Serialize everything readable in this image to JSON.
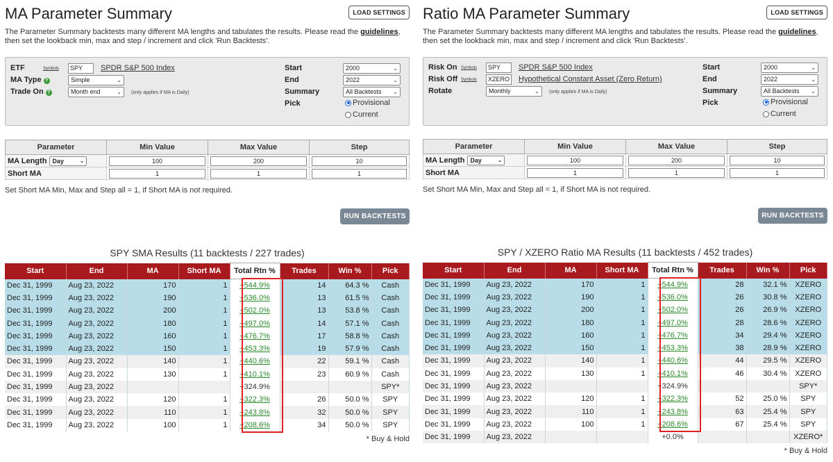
{
  "left": {
    "title": "MA Parameter Summary",
    "load_settings": "LOAD SETTINGS",
    "intro_before": "The Parameter Summary backtests many different MA lengths and tabulates the results.  Please read the ",
    "intro_link": "guidelines",
    "intro_after": ", then set the lookback min, max and step / increment and click 'Run Backtests'.",
    "settings": {
      "etf_label": "ETF",
      "symbols": "Symbols",
      "etf_value": "SPY",
      "etf_name": "SPDR S&P 500 Index",
      "ma_type_label": "MA Type",
      "ma_type_value": "Simple",
      "trade_on_label": "Trade On",
      "trade_on_value": "Month end",
      "daily_note": "(only applies if MA is Daily)",
      "start_label": "Start",
      "start_value": "2000",
      "end_label": "End",
      "end_value": "2022",
      "summary_label": "Summary",
      "summary_value": "All Backtests",
      "pick_label": "Pick",
      "provisional": "Provisional",
      "current": "Current",
      "pick_selected": "Provisional"
    },
    "params": {
      "headers": [
        "Parameter",
        "Min Value",
        "Max Value",
        "Step"
      ],
      "ma_length_label": "MA Length",
      "unit": "Day",
      "ma_min": "100",
      "ma_max": "200",
      "ma_step": "10",
      "short_label": "Short MA",
      "short_min": "1",
      "short_max": "1",
      "short_step": "1"
    },
    "param_note": "Set Short MA Min, Max and Step all = 1, if Short MA is not required.",
    "run": "RUN BACKTESTS",
    "results_title": "SPY SMA Results (11 backtests / 227 trades)",
    "headers": [
      "Start",
      "End",
      "MA",
      "Short MA",
      "Total Rtn %",
      "Trades",
      "Win %",
      "Pick"
    ],
    "rows": [
      [
        "Dec 31, 1999",
        "Aug 23, 2022",
        "170",
        "1",
        "+544.9%",
        "14",
        "64.3 %",
        "Cash"
      ],
      [
        "Dec 31, 1999",
        "Aug 23, 2022",
        "190",
        "1",
        "+536.0%",
        "13",
        "61.5 %",
        "Cash"
      ],
      [
        "Dec 31, 1999",
        "Aug 23, 2022",
        "200",
        "1",
        "+502.0%",
        "13",
        "53.8 %",
        "Cash"
      ],
      [
        "Dec 31, 1999",
        "Aug 23, 2022",
        "180",
        "1",
        "+497.0%",
        "14",
        "57.1 %",
        "Cash"
      ],
      [
        "Dec 31, 1999",
        "Aug 23, 2022",
        "160",
        "1",
        "+476.7%",
        "17",
        "58.8 %",
        "Cash"
      ],
      [
        "Dec 31, 1999",
        "Aug 23, 2022",
        "150",
        "1",
        "+453.3%",
        "19",
        "57.9 %",
        "Cash"
      ],
      [
        "Dec 31, 1999",
        "Aug 23, 2022",
        "140",
        "1",
        "+440.6%",
        "22",
        "59.1 %",
        "Cash"
      ],
      [
        "Dec 31, 1999",
        "Aug 23, 2022",
        "130",
        "1",
        "+410.1%",
        "23",
        "60.9 %",
        "Cash"
      ],
      [
        "Dec 31, 1999",
        "Aug 23, 2022",
        "",
        "",
        "+324.9%",
        "",
        "",
        "SPY*"
      ],
      [
        "Dec 31, 1999",
        "Aug 23, 2022",
        "120",
        "1",
        "+322.3%",
        "26",
        "50.0 %",
        "SPY"
      ],
      [
        "Dec 31, 1999",
        "Aug 23, 2022",
        "110",
        "1",
        "+243.8%",
        "32",
        "50.0 %",
        "SPY"
      ],
      [
        "Dec 31, 1999",
        "Aug 23, 2022",
        "100",
        "1",
        "+208.6%",
        "34",
        "50.0 %",
        "SPY"
      ]
    ],
    "footnote": "* Buy & Hold"
  },
  "right": {
    "title": "Ratio MA Parameter Summary",
    "load_settings": "LOAD SETTINGS",
    "intro_before": "The Parameter Summary backtests many different MA lengths and tabulates the results.  Please read the ",
    "intro_link": "guidelines",
    "intro_after": ", then set the lookback min, max and step / increment and click 'Run Backtests'.",
    "settings": {
      "risk_on_label": "Risk On",
      "symbols": "Symbols",
      "risk_on_value": "SPY",
      "risk_on_name": "SPDR S&P 500 Index",
      "risk_off_label": "Risk Off",
      "risk_off_value": "XZERO",
      "risk_off_name": "Hypothetical Constant Asset (Zero Return)",
      "rotate_label": "Rotate",
      "rotate_value": "Monthly",
      "daily_note": "(only applies if MA is Daily)",
      "start_label": "Start",
      "start_value": "2000",
      "end_label": "End",
      "end_value": "2022",
      "summary_label": "Summary",
      "summary_value": "All Backtests",
      "pick_label": "Pick",
      "provisional": "Provisional",
      "current": "Current",
      "pick_selected": "Provisional"
    },
    "params": {
      "headers": [
        "Parameter",
        "Min Value",
        "Max Value",
        "Step"
      ],
      "ma_length_label": "MA Length",
      "unit": "Day",
      "ma_min": "100",
      "ma_max": "200",
      "ma_step": "10",
      "short_label": "Short MA",
      "short_min": "1",
      "short_max": "1",
      "short_step": "1"
    },
    "param_note": "Set Short MA Min, Max and Step all = 1, if Short MA is not required.",
    "run": "RUN BACKTESTS",
    "results_title": "SPY / XZERO Ratio MA Results (11 backtests / 452 trades)",
    "headers": [
      "Start",
      "End",
      "MA",
      "Short MA",
      "Total Rtn %",
      "Trades",
      "Win %",
      "Pick"
    ],
    "rows": [
      [
        "Dec 31, 1999",
        "Aug 23, 2022",
        "170",
        "1",
        "+544.9%",
        "28",
        "32.1 %",
        "XZERO"
      ],
      [
        "Dec 31, 1999",
        "Aug 23, 2022",
        "190",
        "1",
        "+536.0%",
        "26",
        "30.8 %",
        "XZERO"
      ],
      [
        "Dec 31, 1999",
        "Aug 23, 2022",
        "200",
        "1",
        "+502.0%",
        "26",
        "26.9 %",
        "XZERO"
      ],
      [
        "Dec 31, 1999",
        "Aug 23, 2022",
        "180",
        "1",
        "+497.0%",
        "28",
        "28.6 %",
        "XZERO"
      ],
      [
        "Dec 31, 1999",
        "Aug 23, 2022",
        "160",
        "1",
        "+476.7%",
        "34",
        "29.4 %",
        "XZERO"
      ],
      [
        "Dec 31, 1999",
        "Aug 23, 2022",
        "150",
        "1",
        "+453.3%",
        "38",
        "28.9 %",
        "XZERO"
      ],
      [
        "Dec 31, 1999",
        "Aug 23, 2022",
        "140",
        "1",
        "+440.6%",
        "44",
        "29.5 %",
        "XZERO"
      ],
      [
        "Dec 31, 1999",
        "Aug 23, 2022",
        "130",
        "1",
        "+410.1%",
        "46",
        "30.4 %",
        "XZERO"
      ],
      [
        "Dec 31, 1999",
        "Aug 23, 2022",
        "",
        "",
        "+324.9%",
        "",
        "",
        "SPY*"
      ],
      [
        "Dec 31, 1999",
        "Aug 23, 2022",
        "120",
        "1",
        "+322.3%",
        "52",
        "25.0 %",
        "SPY"
      ],
      [
        "Dec 31, 1999",
        "Aug 23, 2022",
        "110",
        "1",
        "+243.8%",
        "63",
        "25.4 %",
        "SPY"
      ],
      [
        "Dec 31, 1999",
        "Aug 23, 2022",
        "100",
        "1",
        "+208.6%",
        "67",
        "25.4 %",
        "SPY"
      ],
      [
        "Dec 31, 1999",
        "Aug 23, 2022",
        "",
        "",
        "+0.0%",
        "",
        "",
        "XZERO*"
      ]
    ],
    "footnote": "* Buy & Hold"
  },
  "colors": {
    "header_red": "#a81a1d",
    "highlight_blue": "#b8dce8",
    "return_green": "#2a8a2a",
    "box_red": "#e02020",
    "run_button": "#7a8896"
  }
}
